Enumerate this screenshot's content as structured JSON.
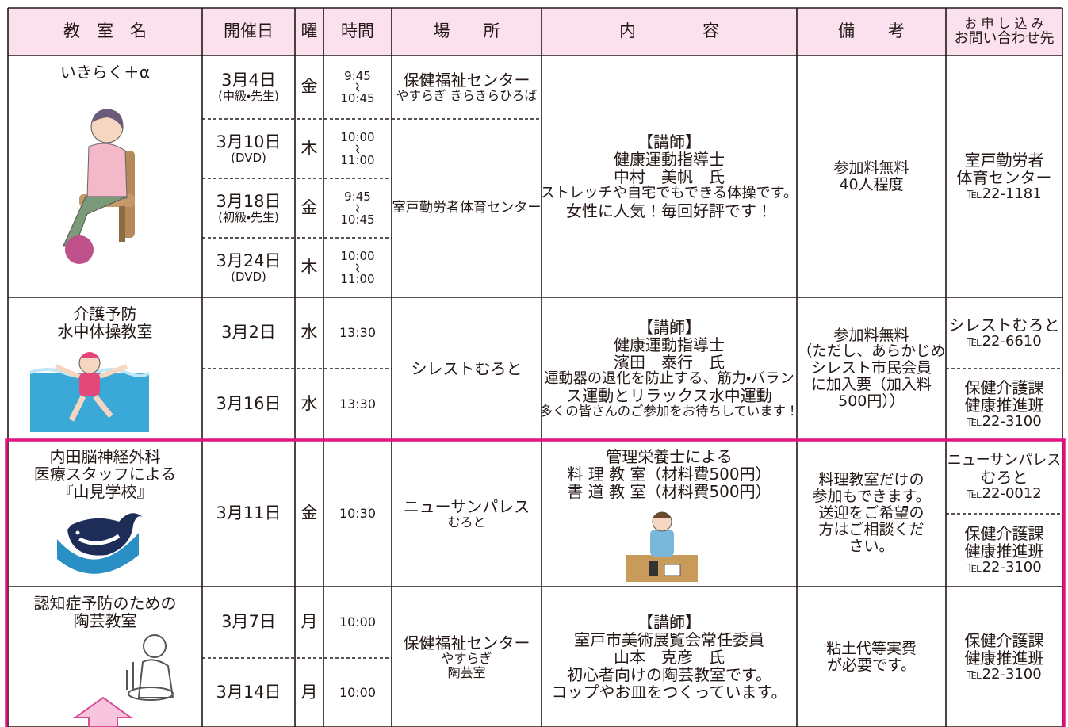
{
  "header": {
    "columns": [
      "教　室　名",
      "開催日",
      "曜",
      "時間",
      "場　　所",
      "内　　　　容",
      "備　　考"
    ],
    "contact": [
      "お 申 し 込 み",
      "お問い合わせ先"
    ]
  },
  "classes": [
    {
      "name": [
        "いきらく＋α"
      ],
      "sessions": [
        {
          "date": [
            "3月4日",
            "(中級・先生)"
          ],
          "day": "金",
          "time": [
            "9:45",
            "10:45"
          ]
        },
        {
          "date": [
            "3月10日",
            "(DVD)"
          ],
          "day": "木",
          "time": [
            "10:00",
            "11:00"
          ]
        },
        {
          "date": [
            "3月18日",
            "(初級・先生)"
          ],
          "day": "金",
          "time": [
            "9:45",
            "10:45"
          ]
        },
        {
          "date": [
            "3月24日",
            "(DVD)"
          ],
          "day": "木",
          "time": [
            "10:00",
            "11:00"
          ]
        }
      ],
      "venues": [
        [
          "保健福祉センター",
          "やすらぎ きらきらひろば"
        ],
        [
          "室戸勤労者体育センター"
        ]
      ],
      "content": [
        "【講師】",
        "健康運動指導士",
        "中村　美帆　氏",
        "ストレッチや自宅でもできる体操です。",
        "女性に人気！毎回好評です！"
      ],
      "notes": [
        "参加料無料",
        "40人程度"
      ],
      "contacts": [
        [
          "室戸勤労者",
          "体育センター",
          "℡22-1181"
        ]
      ]
    },
    {
      "name": [
        "介護予防",
        "水中体操教室"
      ],
      "sessions": [
        {
          "date": [
            "3月2日"
          ],
          "day": "水",
          "time": [
            "13:30"
          ]
        },
        {
          "date": [
            "3月16日"
          ],
          "day": "水",
          "time": [
            "13:30"
          ]
        }
      ],
      "venues": [
        [
          "シレストむろと"
        ]
      ],
      "content": [
        "【講師】",
        "健康運動指導士",
        "濱田　泰行　氏",
        "運動器の退化を防止する、筋力・バラン",
        "ス運動とリラックス水中運動",
        "多くの皆さんのご参加をお待ちしています！"
      ],
      "notes": [
        "参加料無料",
        "（ただし、あらかじめ",
        "シレスト市民会員",
        "に加入要（加入料",
        "500円））"
      ],
      "contacts": [
        [
          "シレストむろと",
          "℡22-6610"
        ],
        [
          "保健介護課",
          "健康推進班",
          "℡22-3100"
        ]
      ]
    },
    {
      "name": [
        "内田脳神経外科",
        "医療スタッフによる",
        "『山見学校』"
      ],
      "sessions": [
        {
          "date": [
            "3月11日"
          ],
          "day": "金",
          "time": [
            "10:30"
          ]
        }
      ],
      "venues": [
        [
          "ニューサンパレス",
          "むろと"
        ]
      ],
      "content": [
        "管理栄養士による",
        "料 理 教 室（材料費500円）",
        "書 道 教 室（材料費500円）"
      ],
      "notes": [
        "料理教室だけの",
        "参加もできます。",
        "送迎をご希望の",
        "方はご相談くだ",
        "さい。"
      ],
      "contacts": [
        [
          "ニューサンパレス",
          "むろと",
          "℡22-0012"
        ],
        [
          "保健介護課",
          "健康推進班",
          "℡22-3100"
        ]
      ]
    },
    {
      "name": [
        "認知症予防のための",
        "陶芸教室"
      ],
      "sessions": [
        {
          "date": [
            "3月7日"
          ],
          "day": "月",
          "time": [
            "10:00"
          ]
        },
        {
          "date": [
            "3月14日"
          ],
          "day": "月",
          "time": [
            "10:00"
          ]
        }
      ],
      "venues": [
        [
          "保健福祉センター",
          "やすらぎ",
          "陶芸室"
        ]
      ],
      "content": [
        "【講師】",
        "室戸市美術展覧会常任委員",
        "山本　克彦　氏",
        "初心者向けの陶芸教室です。",
        "コップやお皿をつくっています。"
      ],
      "notes": [
        "粘土代等実費",
        "が必要です。"
      ],
      "contacts": [
        [
          "保健介護課",
          "健康推進班",
          "℡22-3100"
        ]
      ]
    }
  ]
}
